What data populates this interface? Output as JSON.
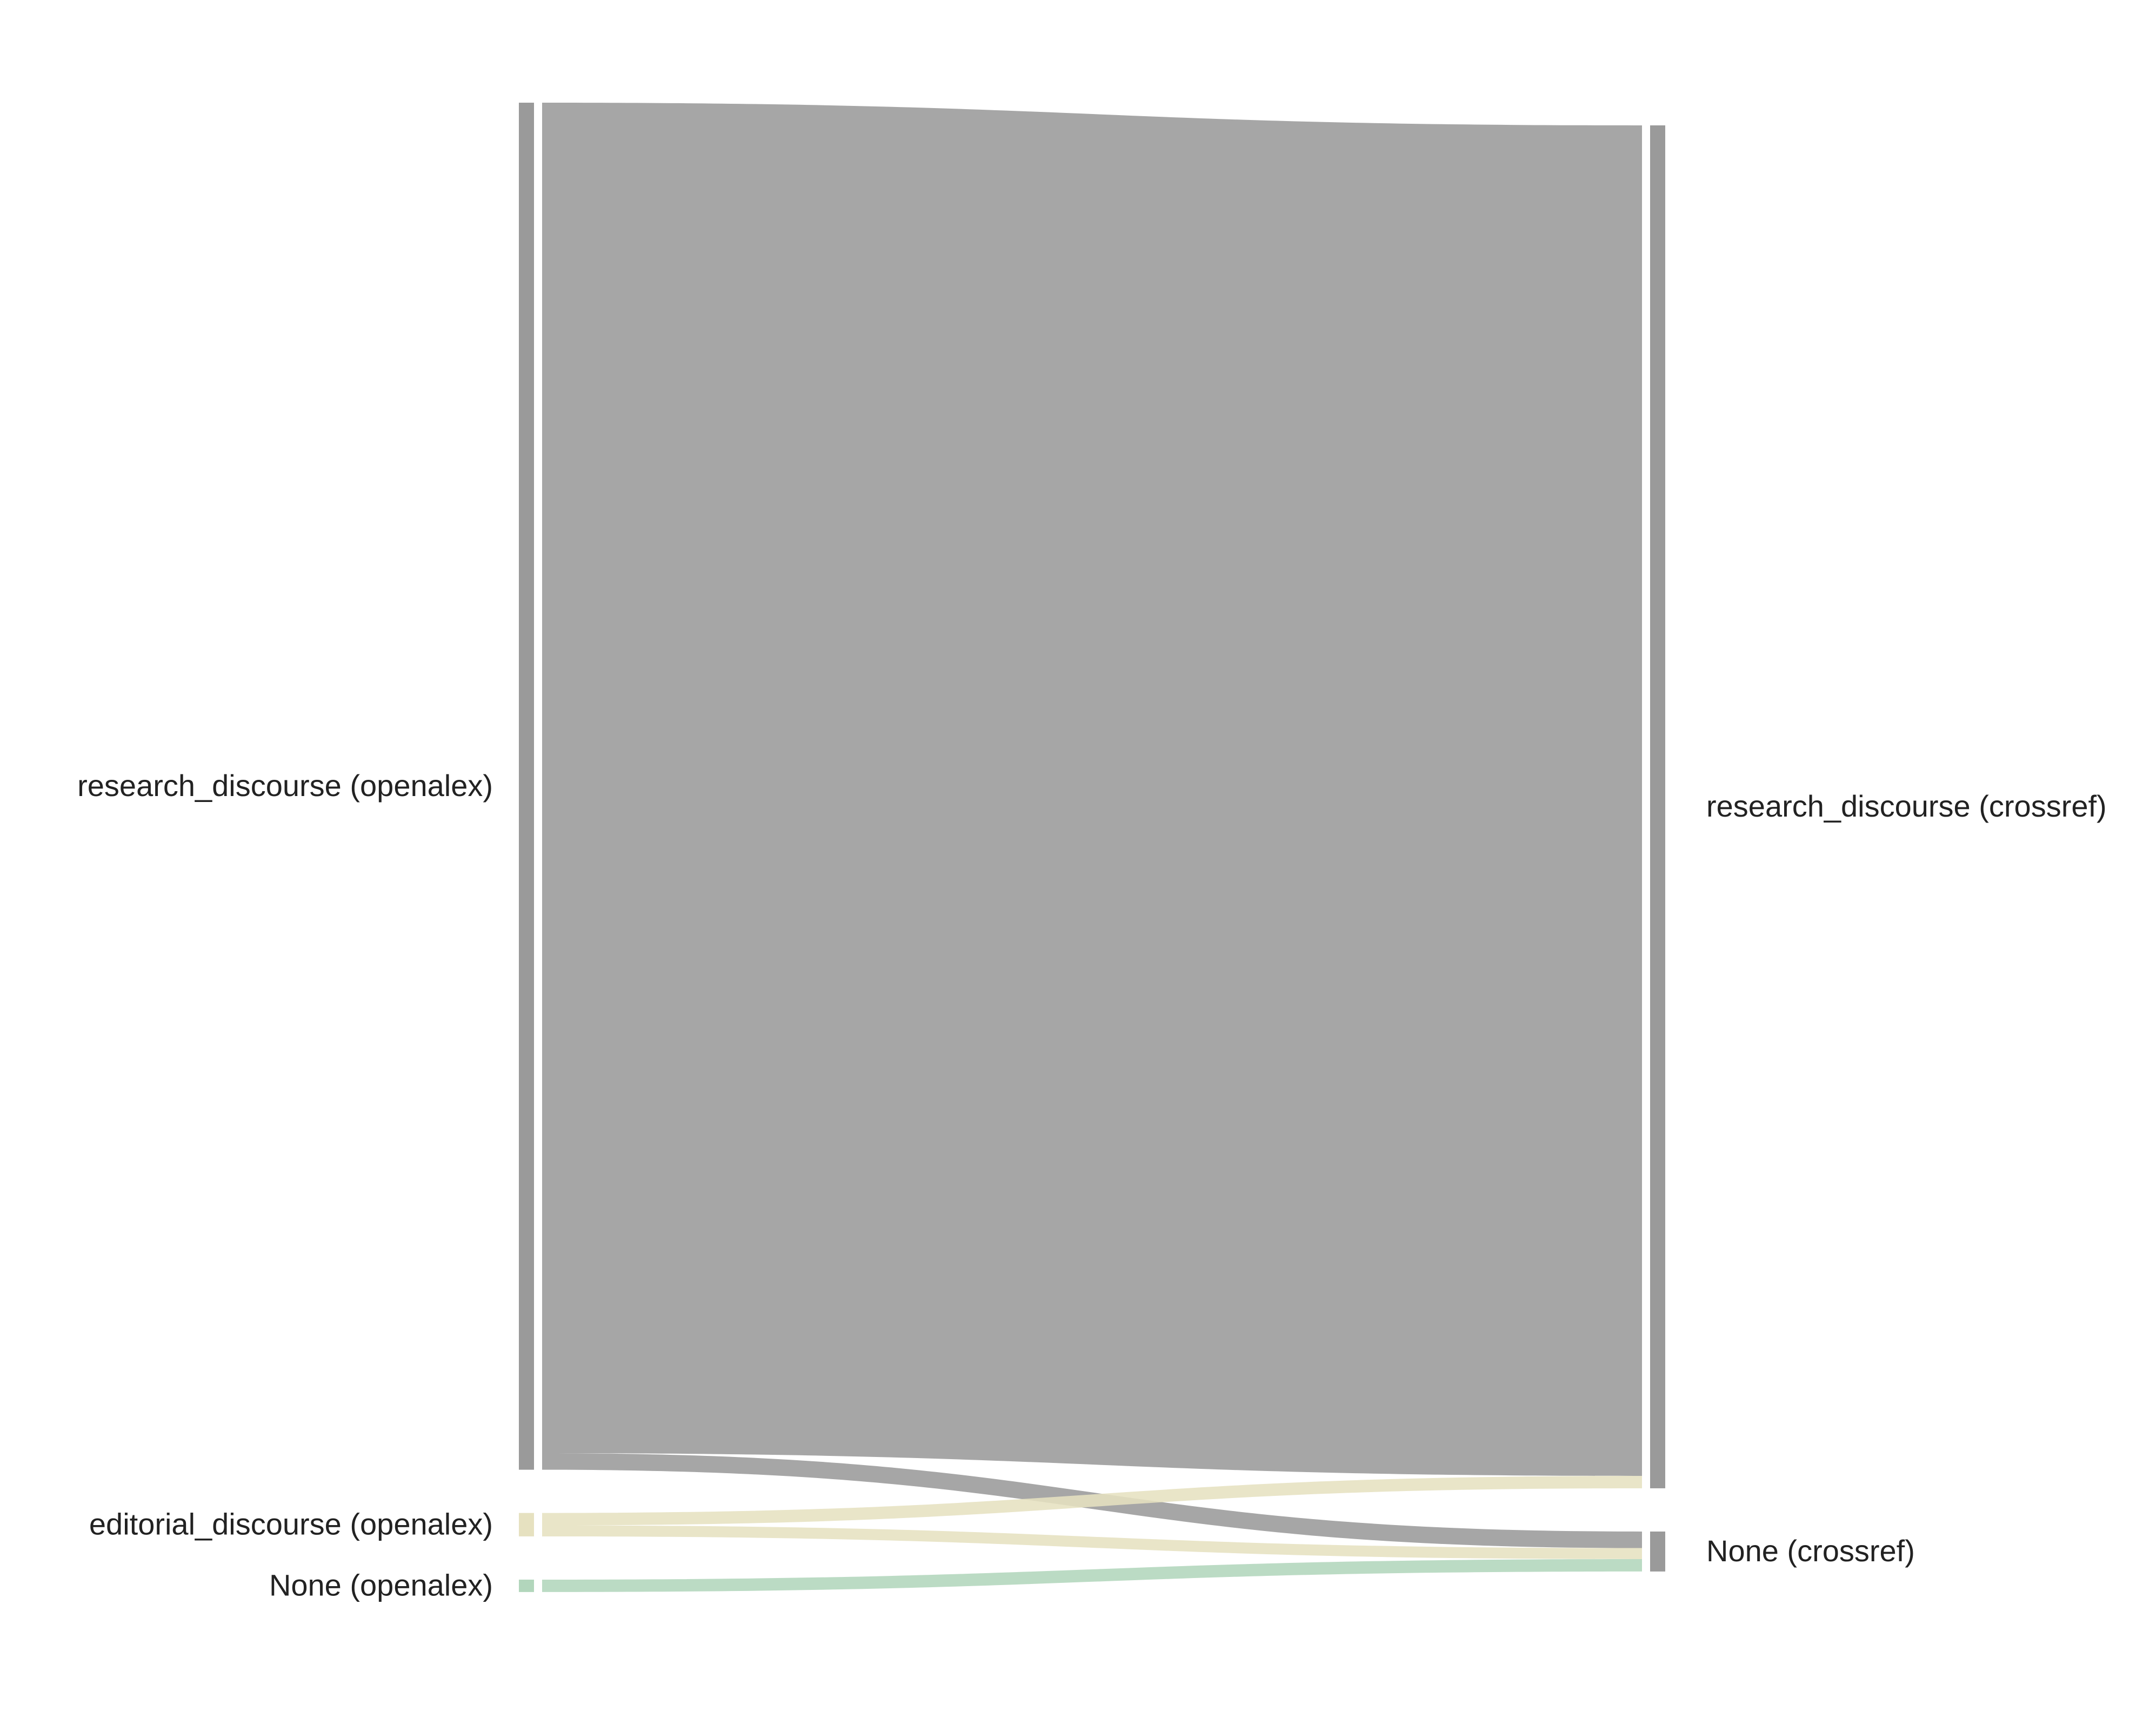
{
  "chart_data": {
    "type": "sankey",
    "left_nodes": [
      {
        "id": "l_research",
        "label": "research_discourse (openalex)",
        "color": "#9a9a9a"
      },
      {
        "id": "l_editorial",
        "label": "editorial_discourse (openalex)",
        "color": "#e6e1c0"
      },
      {
        "id": "l_none",
        "label": "None (openalex)",
        "color": "#b2d6bc"
      }
    ],
    "right_nodes": [
      {
        "id": "r_research",
        "label": "research_discourse (crossref)",
        "color": "#9a9a9a"
      },
      {
        "id": "r_none",
        "label": "None (crossref)",
        "color": "#9a9a9a"
      }
    ],
    "links": [
      {
        "source": "l_research",
        "target": "r_research",
        "value": 980,
        "color": "#9a9a9a"
      },
      {
        "source": "l_research",
        "target": "r_none",
        "value": 12,
        "color": "#9a9a9a"
      },
      {
        "source": "l_editorial",
        "target": "r_research",
        "value": 9,
        "color": "#e6e1c0"
      },
      {
        "source": "l_editorial",
        "target": "r_none",
        "value": 8,
        "color": "#e6e1c0"
      },
      {
        "source": "l_none",
        "target": "r_none",
        "value": 9,
        "color": "#b2d6bc"
      }
    ]
  }
}
